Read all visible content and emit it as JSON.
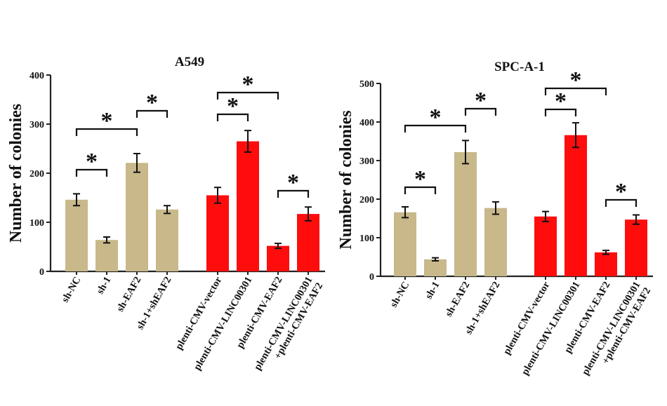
{
  "chart_data": [
    {
      "type": "bar",
      "title": "A549",
      "xlabel": "",
      "ylabel": "Number of colonies",
      "ylim": [
        0,
        400
      ],
      "yticks": [
        0,
        100,
        200,
        300,
        400
      ],
      "categories": [
        "sh-NC",
        "sh-1",
        "sh-EAF2",
        "sh-1+shEAF2",
        "plenti-CMV-vector",
        "plenti-CMV-LINC00301",
        "plenti-CMV-EAF2",
        "plenti-CMV-LINC00301\n+plenti-CMV-EAF2"
      ],
      "values": [
        146,
        64,
        221,
        126,
        155,
        265,
        52,
        117
      ],
      "errors": [
        12,
        6,
        19,
        8,
        16,
        22,
        5,
        14
      ],
      "colors": [
        "#c8b88a",
        "#c8b88a",
        "#c8b88a",
        "#c8b88a",
        "#ff0d0d",
        "#ff0d0d",
        "#ff0d0d",
        "#ff0d0d"
      ],
      "significance": [
        {
          "from": 0,
          "to": 1,
          "label": "*"
        },
        {
          "from": 0,
          "to": 2,
          "label": "*"
        },
        {
          "from": 2,
          "to": 3,
          "label": "*"
        },
        {
          "from": 4,
          "to": 5,
          "label": "*"
        },
        {
          "from": 4,
          "to": 6,
          "label": "*"
        },
        {
          "from": 6,
          "to": 7,
          "label": "*"
        }
      ]
    },
    {
      "type": "bar",
      "title": "SPC-A-1",
      "xlabel": "",
      "ylabel": "Number of colonies",
      "ylim": [
        0,
        500
      ],
      "yticks": [
        0,
        100,
        200,
        300,
        400,
        500
      ],
      "categories": [
        "sh-NC",
        "sh-1",
        "sh-EAF2",
        "sh-1+shEAF2",
        "plenti-CMV-vector",
        "plenti-CMV-LINC00301",
        "plenti-CMV-EAF2",
        "plenti-CMV-LINC00301\n+plenti-CMV-EAF2"
      ],
      "values": [
        166,
        44,
        322,
        177,
        155,
        366,
        62,
        147
      ],
      "errors": [
        14,
        4,
        30,
        16,
        13,
        32,
        5,
        12
      ],
      "colors": [
        "#c8b88a",
        "#c8b88a",
        "#c8b88a",
        "#c8b88a",
        "#ff0d0d",
        "#ff0d0d",
        "#ff0d0d",
        "#ff0d0d"
      ],
      "significance": [
        {
          "from": 0,
          "to": 1,
          "label": "*"
        },
        {
          "from": 0,
          "to": 2,
          "label": "*"
        },
        {
          "from": 2,
          "to": 3,
          "label": "*"
        },
        {
          "from": 4,
          "to": 5,
          "label": "*"
        },
        {
          "from": 4,
          "to": 6,
          "label": "*"
        },
        {
          "from": 6,
          "to": 7,
          "label": "*"
        }
      ]
    }
  ]
}
